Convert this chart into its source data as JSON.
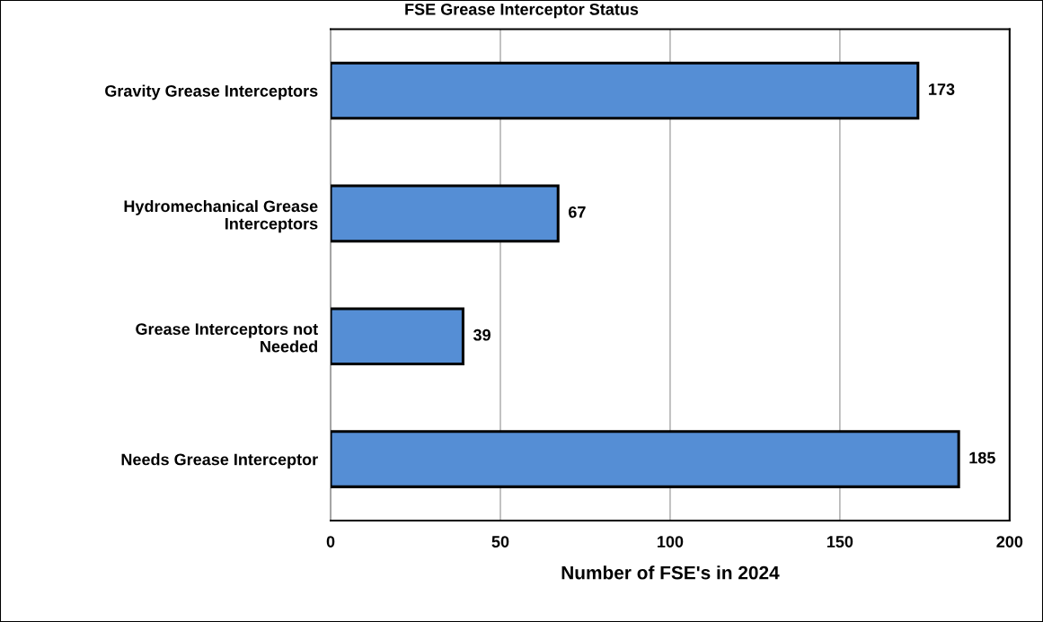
{
  "chart_data": {
    "type": "bar",
    "orientation": "horizontal",
    "title": "FSE Grease Interceptor Status",
    "xlabel": "Number of FSE's in 2024",
    "categories": [
      "Gravity Grease Interceptors",
      "Hydromechanical Grease\nInterceptors",
      "Grease Interceptors not\nNeeded",
      "Needs Grease Interceptor"
    ],
    "values": [
      173,
      67,
      39,
      185
    ],
    "color": "#558ed5",
    "xlim": [
      0,
      200
    ],
    "xticks": [
      0,
      50,
      100,
      150,
      200
    ],
    "grid": "x",
    "data_labels": true,
    "legend": false
  }
}
